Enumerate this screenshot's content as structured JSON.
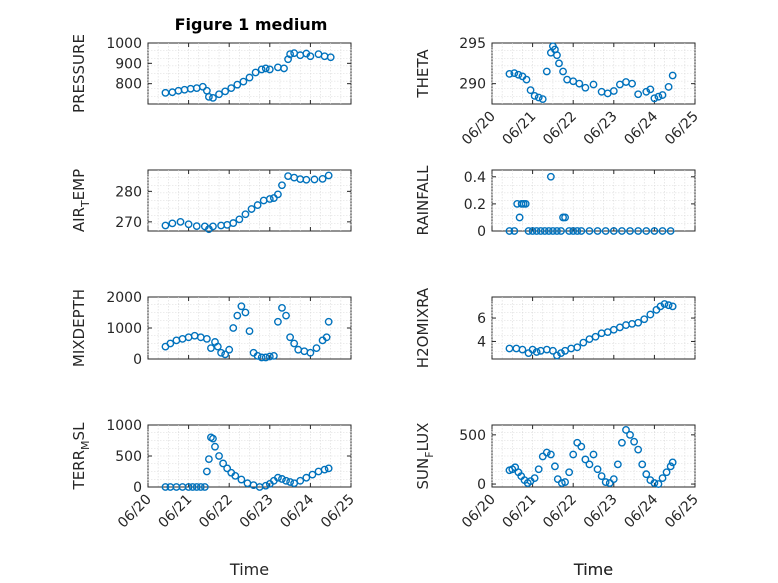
{
  "figure_title": "Figure 1 medium",
  "colors": {
    "marker": "#0072BD",
    "axes": "#262626",
    "grid": "#d9d9d9"
  },
  "chart_data": [
    {
      "type": "scatter",
      "marker": "circle",
      "title": "Figure 1 medium",
      "ylabel": {
        "base": "PRESSURE"
      },
      "xlabel": "",
      "x_tick_labels_visible": false,
      "xlim": [
        0,
        5
      ],
      "ylim": [
        700,
        1000
      ],
      "yticks": [
        800,
        900,
        1000
      ],
      "grid": true,
      "x_ticks": [
        "06/20",
        "06/21",
        "06/22",
        "06/23",
        "06/24",
        "06/25"
      ],
      "x": [
        0.43,
        0.6,
        0.75,
        0.9,
        1.05,
        1.2,
        1.35,
        1.45,
        1.5,
        1.6,
        1.75,
        1.9,
        2.05,
        2.2,
        2.35,
        2.5,
        2.65,
        2.8,
        2.9,
        3.0,
        3.2,
        3.35,
        3.45,
        3.5,
        3.6,
        3.75,
        3.9,
        4.0,
        4.2,
        4.35,
        4.5
      ],
      "y": [
        755,
        758,
        765,
        770,
        775,
        778,
        785,
        765,
        735,
        730,
        748,
        762,
        778,
        795,
        810,
        830,
        855,
        870,
        875,
        870,
        880,
        875,
        920,
        945,
        950,
        940,
        948,
        935,
        945,
        935,
        930
      ]
    },
    {
      "type": "scatter",
      "marker": "circle",
      "ylabel": {
        "base": "THETA"
      },
      "xlabel": "Time",
      "x_tick_labels_visible": true,
      "xlim": [
        0,
        5
      ],
      "ylim": [
        287.5,
        295
      ],
      "yticks": [
        290,
        295
      ],
      "grid": true,
      "x_ticks": [
        "06/20",
        "06/21",
        "06/22",
        "06/23",
        "06/24",
        "06/25"
      ],
      "x": [
        0.43,
        0.55,
        0.65,
        0.75,
        0.85,
        0.95,
        1.05,
        1.15,
        1.25,
        1.35,
        1.45,
        1.5,
        1.55,
        1.6,
        1.65,
        1.75,
        1.85,
        2.0,
        2.15,
        2.3,
        2.5,
        2.7,
        2.85,
        3.0,
        3.15,
        3.3,
        3.45,
        3.6,
        3.8,
        3.9,
        4.0,
        4.1,
        4.2,
        4.35,
        4.45
      ],
      "y": [
        291.2,
        291.3,
        291.1,
        290.9,
        290.5,
        289.2,
        288.5,
        288.3,
        288.1,
        291.5,
        293.8,
        294.6,
        294.2,
        293.5,
        292.5,
        291.5,
        290.5,
        290.3,
        290.0,
        289.5,
        289.9,
        289.0,
        288.8,
        289.1,
        289.9,
        290.2,
        290.0,
        288.7,
        289.0,
        289.3,
        288.2,
        288.4,
        288.6,
        289.6,
        291.0
      ]
    },
    {
      "type": "scatter",
      "marker": "circle",
      "ylabel": {
        "base": "AIR",
        "sub": "T",
        "tail": "EMP"
      },
      "xlabel": "",
      "x_tick_labels_visible": false,
      "xlim": [
        0,
        5
      ],
      "ylim": [
        267,
        287
      ],
      "yticks": [
        270,
        280
      ],
      "grid": true,
      "x_ticks": [
        "06/20",
        "06/21",
        "06/22",
        "06/23",
        "06/24",
        "06/25"
      ],
      "x": [
        0.43,
        0.6,
        0.8,
        1.0,
        1.2,
        1.4,
        1.5,
        1.6,
        1.8,
        1.95,
        2.1,
        2.25,
        2.4,
        2.55,
        2.7,
        2.85,
        3.0,
        3.1,
        3.2,
        3.3,
        3.45,
        3.6,
        3.75,
        3.9,
        4.1,
        4.3,
        4.45
      ],
      "y": [
        268.8,
        269.5,
        270.0,
        269.2,
        268.6,
        268.5,
        267.6,
        268.5,
        268.8,
        269.0,
        269.6,
        270.8,
        272.5,
        274.2,
        275.5,
        277.0,
        277.5,
        277.8,
        279.0,
        282.0,
        285.0,
        284.5,
        284.0,
        283.8,
        283.9,
        284.1,
        285.2
      ]
    },
    {
      "type": "scatter",
      "marker": "circle",
      "ylabel": {
        "base": "RAINFALL"
      },
      "xlabel": "",
      "x_tick_labels_visible": false,
      "xlim": [
        0,
        5
      ],
      "ylim": [
        0,
        0.45
      ],
      "yticks": [
        0,
        0.2,
        0.4
      ],
      "grid": true,
      "x_ticks": [
        "06/20",
        "06/21",
        "06/22",
        "06/23",
        "06/24",
        "06/25"
      ],
      "x": [
        0.43,
        0.55,
        0.62,
        0.68,
        0.73,
        0.78,
        0.83,
        0.9,
        1.0,
        1.1,
        1.2,
        1.3,
        1.4,
        1.45,
        1.5,
        1.6,
        1.7,
        1.75,
        1.8,
        1.9,
        2.0,
        2.1,
        2.2,
        2.4,
        2.6,
        2.8,
        3.0,
        3.2,
        3.4,
        3.6,
        3.8,
        4.0,
        4.2,
        4.4
      ],
      "y": [
        0,
        0,
        0.2,
        0.1,
        0.2,
        0.2,
        0.2,
        0,
        0,
        0,
        0,
        0,
        0,
        0.4,
        0,
        0,
        0,
        0.1,
        0.1,
        0,
        0,
        0,
        0,
        0,
        0,
        0,
        0,
        0,
        0,
        0,
        0,
        0,
        0,
        0
      ]
    },
    {
      "type": "scatter",
      "marker": "circle",
      "ylabel": {
        "base": "MIXDEPTH"
      },
      "xlabel": "",
      "x_tick_labels_visible": false,
      "xlim": [
        0,
        5
      ],
      "ylim": [
        0,
        2000
      ],
      "yticks": [
        0,
        1000,
        2000
      ],
      "grid": true,
      "x_ticks": [
        "06/20",
        "06/21",
        "06/22",
        "06/23",
        "06/24",
        "06/25"
      ],
      "x": [
        0.43,
        0.55,
        0.7,
        0.85,
        1.0,
        1.15,
        1.3,
        1.45,
        1.55,
        1.65,
        1.72,
        1.8,
        1.9,
        2.0,
        2.1,
        2.2,
        2.3,
        2.4,
        2.5,
        2.6,
        2.7,
        2.8,
        2.9,
        3.0,
        3.1,
        3.2,
        3.3,
        3.4,
        3.5,
        3.6,
        3.7,
        3.85,
        4.0,
        4.15,
        4.3,
        4.4,
        4.45
      ],
      "y": [
        400,
        500,
        600,
        650,
        700,
        750,
        700,
        650,
        350,
        550,
        400,
        200,
        150,
        300,
        1000,
        1400,
        1700,
        1500,
        900,
        200,
        100,
        50,
        50,
        80,
        100,
        1200,
        1650,
        1400,
        700,
        500,
        300,
        250,
        200,
        350,
        600,
        700,
        1200
      ]
    },
    {
      "type": "scatter",
      "marker": "circle",
      "ylabel": {
        "base": "H2OMIXRA"
      },
      "xlabel": "",
      "x_tick_labels_visible": false,
      "xlim": [
        0,
        5
      ],
      "ylim": [
        2.5,
        7.8
      ],
      "yticks": [
        4,
        6
      ],
      "grid": true,
      "x_ticks": [
        "06/20",
        "06/21",
        "06/22",
        "06/23",
        "06/24",
        "06/25"
      ],
      "x": [
        0.43,
        0.6,
        0.75,
        0.9,
        1.0,
        1.1,
        1.2,
        1.35,
        1.5,
        1.6,
        1.7,
        1.8,
        1.95,
        2.1,
        2.25,
        2.4,
        2.55,
        2.7,
        2.85,
        3.0,
        3.15,
        3.3,
        3.45,
        3.6,
        3.75,
        3.9,
        4.05,
        4.15,
        4.25,
        4.35,
        4.45
      ],
      "y": [
        3.4,
        3.4,
        3.3,
        3.0,
        3.3,
        3.1,
        3.2,
        3.3,
        3.2,
        2.8,
        3.0,
        3.2,
        3.4,
        3.5,
        3.9,
        4.2,
        4.4,
        4.7,
        4.8,
        5.0,
        5.2,
        5.4,
        5.5,
        5.6,
        5.9,
        6.3,
        6.7,
        7.0,
        7.2,
        7.1,
        7.0
      ]
    },
    {
      "type": "scatter",
      "marker": "circle",
      "ylabel": {
        "base": "TERR",
        "sub": "M",
        "tail": "SL"
      },
      "xlabel": "Time",
      "x_tick_labels_visible": true,
      "xlim": [
        0,
        5
      ],
      "ylim": [
        0,
        1000
      ],
      "yticks": [
        0,
        500,
        1000
      ],
      "grid": true,
      "x_ticks": [
        "06/20",
        "06/21",
        "06/22",
        "06/23",
        "06/24",
        "06/25"
      ],
      "x": [
        0.43,
        0.55,
        0.7,
        0.85,
        1.0,
        1.1,
        1.2,
        1.3,
        1.4,
        1.45,
        1.5,
        1.55,
        1.6,
        1.65,
        1.75,
        1.85,
        1.95,
        2.05,
        2.15,
        2.3,
        2.45,
        2.6,
        2.75,
        2.9,
        3.0,
        3.1,
        3.2,
        3.3,
        3.4,
        3.5,
        3.6,
        3.75,
        3.9,
        4.05,
        4.2,
        4.35,
        4.45
      ],
      "y": [
        0,
        0,
        0,
        0,
        0,
        0,
        0,
        0,
        0,
        250,
        450,
        800,
        780,
        650,
        500,
        380,
        300,
        230,
        180,
        120,
        60,
        30,
        0,
        20,
        50,
        100,
        150,
        130,
        100,
        80,
        60,
        100,
        150,
        200,
        250,
        280,
        300
      ]
    },
    {
      "type": "scatter",
      "marker": "circle",
      "ylabel": {
        "base": "SUN",
        "sub": "F",
        "tail": "LUX"
      },
      "xlabel": "Time",
      "x_tick_labels_visible": true,
      "xlim": [
        0,
        5
      ],
      "ylim": [
        -30,
        600
      ],
      "yticks": [
        0,
        500
      ],
      "grid": true,
      "x_ticks": [
        "06/20",
        "06/21",
        "06/22",
        "06/23",
        "06/24",
        "06/25"
      ],
      "x": [
        0.43,
        0.5,
        0.57,
        0.65,
        0.72,
        0.8,
        0.88,
        0.95,
        1.05,
        1.15,
        1.25,
        1.35,
        1.45,
        1.55,
        1.62,
        1.72,
        1.8,
        1.9,
        2.0,
        2.1,
        2.2,
        2.3,
        2.4,
        2.5,
        2.6,
        2.7,
        2.8,
        2.9,
        3.0,
        3.1,
        3.2,
        3.3,
        3.4,
        3.5,
        3.6,
        3.7,
        3.8,
        3.9,
        4.0,
        4.1,
        4.2,
        4.3,
        4.4,
        4.45
      ],
      "y": [
        140,
        150,
        170,
        120,
        80,
        40,
        10,
        30,
        60,
        150,
        280,
        320,
        300,
        180,
        50,
        10,
        20,
        120,
        300,
        420,
        380,
        250,
        200,
        300,
        150,
        80,
        20,
        10,
        50,
        200,
        420,
        550,
        500,
        430,
        350,
        200,
        100,
        40,
        10,
        0,
        60,
        120,
        180,
        220
      ]
    }
  ]
}
